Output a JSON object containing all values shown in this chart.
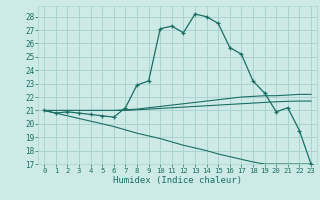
{
  "title": "",
  "xlabel": "Humidex (Indice chaleur)",
  "bg_color": "#ceeae7",
  "grid_color": "#aad4d0",
  "line_color": "#1a6e64",
  "xlim": [
    -0.5,
    23.5
  ],
  "ylim": [
    17,
    28.8
  ],
  "yticks": [
    17,
    18,
    19,
    20,
    21,
    22,
    23,
    24,
    25,
    26,
    27,
    28
  ],
  "xticks": [
    0,
    1,
    2,
    3,
    4,
    5,
    6,
    7,
    8,
    9,
    10,
    11,
    12,
    13,
    14,
    15,
    16,
    17,
    18,
    19,
    20,
    21,
    22,
    23
  ],
  "series_main": [
    21.0,
    20.8,
    20.9,
    20.8,
    20.7,
    20.6,
    20.5,
    21.2,
    22.9,
    23.2,
    27.1,
    27.3,
    26.8,
    28.2,
    28.0,
    27.5,
    25.7,
    25.2,
    23.2,
    22.3,
    20.9,
    21.2,
    19.5,
    17.0
  ],
  "series_flat_hi": [
    21.0,
    21.0,
    21.0,
    21.0,
    21.0,
    21.0,
    21.0,
    21.05,
    21.1,
    21.2,
    21.3,
    21.4,
    21.5,
    21.6,
    21.7,
    21.8,
    21.9,
    22.0,
    22.05,
    22.1,
    22.1,
    22.15,
    22.2,
    22.2
  ],
  "series_flat_lo": [
    21.0,
    21.0,
    21.0,
    21.0,
    21.0,
    21.0,
    21.0,
    21.0,
    21.05,
    21.1,
    21.15,
    21.2,
    21.25,
    21.3,
    21.35,
    21.4,
    21.45,
    21.5,
    21.55,
    21.6,
    21.65,
    21.68,
    21.7,
    21.7
  ],
  "series_diag": [
    21.0,
    20.8,
    20.6,
    20.4,
    20.2,
    20.0,
    19.8,
    19.55,
    19.3,
    19.1,
    18.9,
    18.65,
    18.4,
    18.2,
    18.0,
    17.75,
    17.55,
    17.35,
    17.15,
    17.0,
    17.0,
    17.0,
    17.0,
    17.0
  ]
}
